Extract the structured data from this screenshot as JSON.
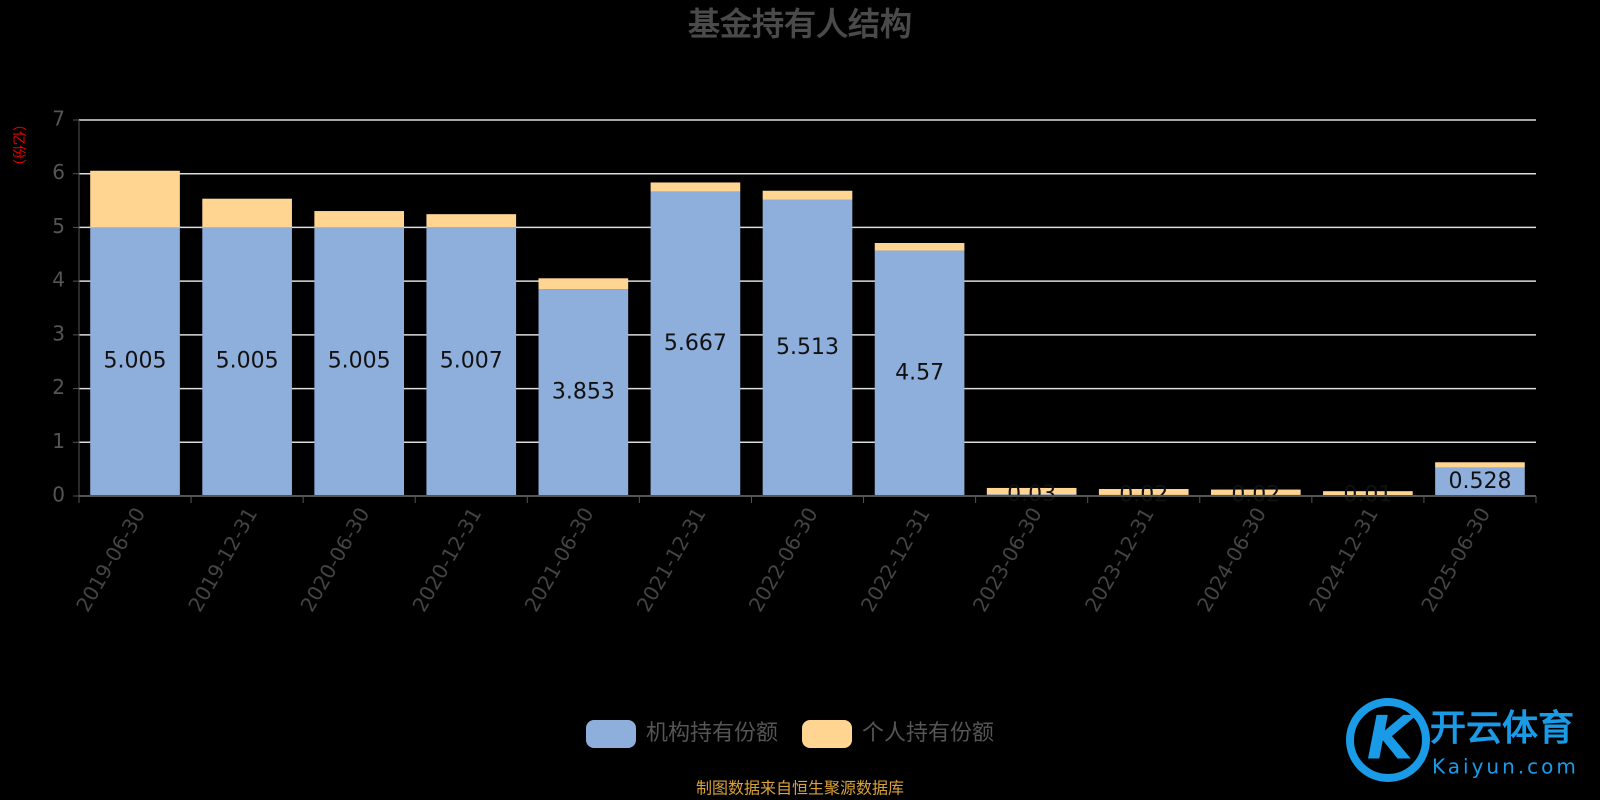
{
  "chart_data": {
    "type": "stacked-bar",
    "title": "基金持有人结构",
    "y_label": "（亿份）",
    "categories": [
      "2019-06-30",
      "2019-12-31",
      "2020-06-30",
      "2020-12-31",
      "2021-06-30",
      "2021-12-31",
      "2022-06-30",
      "2022-12-31",
      "2023-06-30",
      "2023-12-31",
      "2024-06-30",
      "2024-12-31",
      "2025-06-30"
    ],
    "series": [
      {
        "name": "机构持有份额",
        "color": "#8eaedc",
        "values": [
          5.005,
          5.005,
          5.005,
          5.007,
          3.853,
          5.667,
          5.513,
          4.57,
          0.03,
          0.02,
          0.02,
          0.01,
          0.528
        ]
      },
      {
        "name": "个人持有份额",
        "color": "#ffd591",
        "values": [
          1.05,
          0.53,
          0.3,
          0.24,
          0.2,
          0.17,
          0.17,
          0.14,
          0.12,
          0.11,
          0.1,
          0.08,
          0.1
        ]
      }
    ],
    "ylim": [
      0,
      7
    ],
    "yticks": [
      0,
      1,
      2,
      3,
      4,
      5,
      6,
      7
    ],
    "grid": true,
    "legend": "bottom",
    "source": "制图数据来自恒生聚源数据库",
    "watermark": {
      "brand": "开云体育",
      "site": "Kaiyun.com"
    }
  }
}
